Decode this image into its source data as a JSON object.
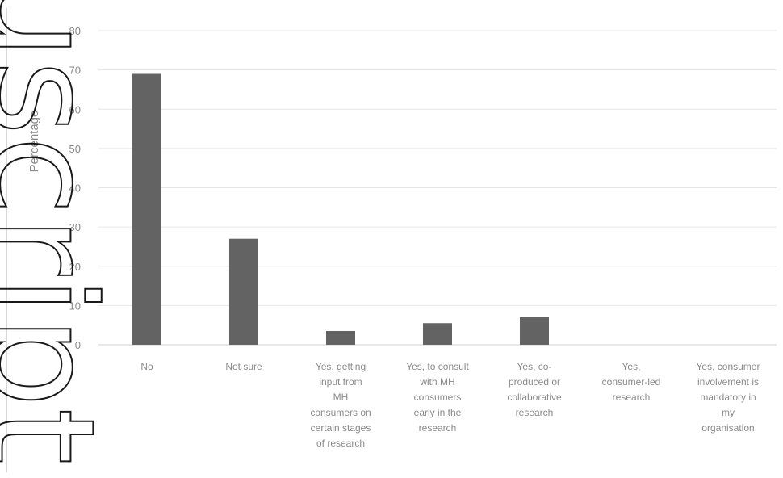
{
  "watermark": "uscript",
  "chart_data": {
    "type": "bar",
    "title": "",
    "xlabel": "",
    "ylabel": "Percentage",
    "ylim": [
      0,
      80
    ],
    "yticks": [
      0,
      10,
      20,
      30,
      40,
      50,
      60,
      70,
      80
    ],
    "grid": true,
    "legend": "none",
    "bar_color": "#636363",
    "categories": [
      "No",
      "Not sure",
      "Yes, getting input from MH consumers on certain stages of research",
      "Yes, to consult with MH consumers early in the research",
      "Yes, co-produced or collaborative research",
      "Yes, consumer-led research",
      "Yes, consumer involvement is mandatory in my organisation"
    ],
    "category_lines": [
      [
        "No"
      ],
      [
        "Not sure"
      ],
      [
        "Yes, getting",
        "input from",
        "MH",
        "consumers on",
        "certain stages",
        "of research"
      ],
      [
        "Yes, to consult",
        "with MH",
        "consumers",
        "early in the",
        "research"
      ],
      [
        "Yes, co-",
        "produced or",
        "collaborative",
        "research"
      ],
      [
        "Yes,",
        "consumer-led",
        "research"
      ],
      [
        "Yes, consumer",
        "involvement is",
        "mandatory in",
        "my",
        "organisation"
      ]
    ],
    "values": [
      69,
      27,
      3.5,
      5.5,
      7,
      0,
      0
    ]
  }
}
